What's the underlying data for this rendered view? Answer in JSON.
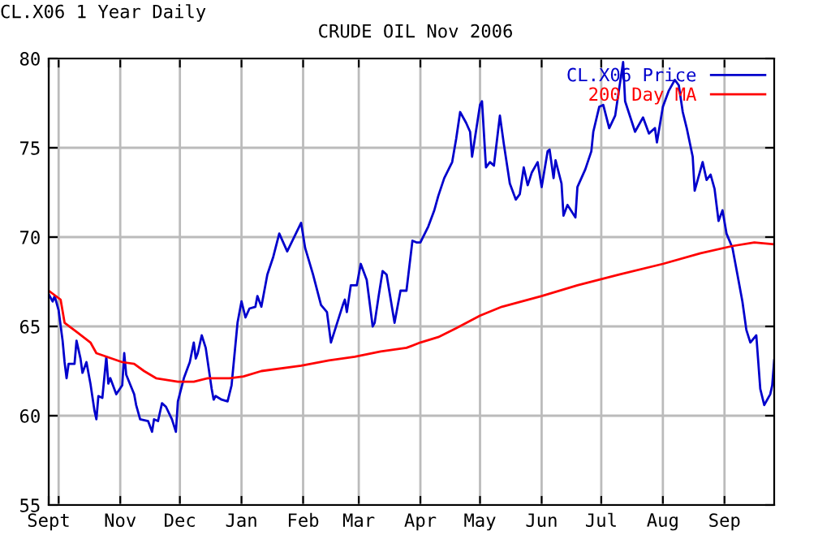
{
  "chart_data": {
    "type": "line",
    "title": "CRUDE OIL Nov 2006",
    "subtitle": "CL.X06 1 Year Daily",
    "xlim": [
      "2005-09-26",
      "2006-09-26"
    ],
    "ylim": [
      55,
      80
    ],
    "yticks": [
      55,
      60,
      65,
      70,
      75,
      80
    ],
    "xticks": [
      {
        "value": "2005-09-26",
        "label": "Sept"
      },
      {
        "value": "2005-10-01",
        "label": null
      },
      {
        "value": "2005-11-01",
        "label": "Nov"
      },
      {
        "value": "2005-12-01",
        "label": "Dec"
      },
      {
        "value": "2006-01-01",
        "label": "Jan"
      },
      {
        "value": "2006-02-01",
        "label": "Feb"
      },
      {
        "value": "2006-03-01",
        "label": "Mar"
      },
      {
        "value": "2006-04-01",
        "label": "Apr"
      },
      {
        "value": "2006-05-01",
        "label": "May"
      },
      {
        "value": "2006-06-01",
        "label": "Jun"
      },
      {
        "value": "2006-07-01",
        "label": "Jul"
      },
      {
        "value": "2006-08-01",
        "label": "Aug"
      },
      {
        "value": "2006-09-01",
        "label": "Sep"
      }
    ],
    "grid": true,
    "legend": "top right",
    "series": [
      {
        "name": "CL.X06 Price",
        "color": "#0000cc",
        "x": [
          "2005-09-26",
          "2005-09-28",
          "2005-09-29",
          "2005-10-01",
          "2005-10-03",
          "2005-10-04",
          "2005-10-05",
          "2005-10-06",
          "2005-10-09",
          "2005-10-10",
          "2005-10-12",
          "2005-10-13",
          "2005-10-15",
          "2005-10-17",
          "2005-10-19",
          "2005-10-20",
          "2005-10-21",
          "2005-10-23",
          "2005-10-25",
          "2005-10-26",
          "2005-10-27",
          "2005-10-30",
          "2005-11-02",
          "2005-11-03",
          "2005-11-04",
          "2005-11-08",
          "2005-11-09",
          "2005-11-11",
          "2005-11-15",
          "2005-11-17",
          "2005-11-18",
          "2005-11-20",
          "2005-11-22",
          "2005-11-24",
          "2005-11-27",
          "2005-11-29",
          "2005-11-30",
          "2005-12-03",
          "2005-12-05",
          "2005-12-06",
          "2005-12-08",
          "2005-12-09",
          "2005-12-10",
          "2005-12-12",
          "2005-12-14",
          "2005-12-17",
          "2005-12-18",
          "2005-12-19",
          "2005-12-22",
          "2005-12-25",
          "2005-12-27",
          "2005-12-30",
          "2006-01-01",
          "2006-01-03",
          "2006-01-05",
          "2006-01-08",
          "2006-01-09",
          "2006-01-11",
          "2006-01-14",
          "2006-01-17",
          "2006-01-20",
          "2006-01-24",
          "2006-01-31",
          "2006-02-02",
          "2006-02-06",
          "2006-02-10",
          "2006-02-13",
          "2006-02-15",
          "2006-02-21",
          "2006-02-22",
          "2006-02-23",
          "2006-02-25",
          "2006-02-28",
          "2006-03-02",
          "2006-03-05",
          "2006-03-08",
          "2006-03-09",
          "2006-03-11",
          "2006-03-13",
          "2006-03-15",
          "2006-03-19",
          "2006-03-22",
          "2006-03-25",
          "2006-03-28",
          "2006-03-30",
          "2006-04-01",
          "2006-04-05",
          "2006-04-08",
          "2006-04-10",
          "2006-04-13",
          "2006-04-17",
          "2006-04-19",
          "2006-04-21",
          "2006-04-24",
          "2006-04-26",
          "2006-04-27",
          "2006-05-01",
          "2006-05-02",
          "2006-05-04",
          "2006-05-06",
          "2006-05-08",
          "2006-05-11",
          "2006-05-13",
          "2006-05-16",
          "2006-05-19",
          "2006-05-21",
          "2006-05-23",
          "2006-05-25",
          "2006-05-27",
          "2006-05-30",
          "2006-06-01",
          "2006-06-04",
          "2006-06-05",
          "2006-06-07",
          "2006-06-08",
          "2006-06-11",
          "2006-06-12",
          "2006-06-14",
          "2006-06-18",
          "2006-06-19",
          "2006-06-23",
          "2006-06-26",
          "2006-06-27",
          "2006-06-30",
          "2006-07-02",
          "2006-07-05",
          "2006-07-08",
          "2006-07-12",
          "2006-07-13",
          "2006-07-18",
          "2006-07-22",
          "2006-07-25",
          "2006-07-28",
          "2006-07-29",
          "2006-08-01",
          "2006-08-04",
          "2006-08-07",
          "2006-08-09",
          "2006-08-11",
          "2006-08-13",
          "2006-08-16",
          "2006-08-17",
          "2006-08-21",
          "2006-08-23",
          "2006-08-25",
          "2006-08-27",
          "2006-08-29",
          "2006-08-31",
          "2006-09-02",
          "2006-09-05",
          "2006-09-08",
          "2006-09-10",
          "2006-09-12",
          "2006-09-14",
          "2006-09-17",
          "2006-09-19",
          "2006-09-21",
          "2006-09-24",
          "2006-09-25",
          "2006-09-26"
        ],
        "values": [
          66.8,
          66.4,
          66.7,
          65.9,
          64.2,
          63.0,
          62.1,
          62.9,
          62.9,
          64.2,
          63.2,
          62.4,
          63.0,
          61.8,
          60.3,
          59.8,
          61.1,
          61.0,
          63.3,
          61.8,
          62.1,
          61.2,
          61.7,
          63.5,
          62.3,
          61.2,
          60.6,
          59.8,
          59.7,
          59.1,
          59.8,
          59.7,
          60.7,
          60.5,
          59.8,
          59.1,
          60.8,
          62.1,
          62.7,
          63.0,
          64.1,
          63.2,
          63.5,
          64.5,
          63.8,
          61.5,
          60.9,
          61.1,
          60.9,
          60.8,
          61.7,
          65.2,
          66.4,
          65.5,
          66.0,
          66.1,
          66.7,
          66.1,
          67.9,
          68.9,
          70.2,
          69.2,
          70.8,
          69.4,
          67.9,
          66.2,
          65.8,
          64.1,
          66.2,
          66.5,
          65.8,
          67.3,
          67.3,
          68.5,
          67.6,
          65.0,
          65.2,
          66.7,
          68.1,
          67.9,
          65.2,
          67.0,
          67.0,
          69.8,
          69.7,
          69.7,
          70.6,
          71.5,
          72.3,
          73.3,
          74.2,
          75.5,
          77.0,
          76.4,
          75.9,
          74.5,
          77.4,
          77.6,
          73.9,
          74.2,
          74.0,
          76.8,
          75.2,
          73.0,
          72.1,
          72.4,
          73.9,
          72.9,
          73.6,
          74.2,
          72.8,
          74.8,
          74.9,
          73.3,
          74.3,
          73.0,
          71.2,
          71.8,
          71.1,
          72.8,
          73.8,
          74.8,
          75.9,
          77.3,
          77.4,
          76.1,
          76.8,
          79.8,
          77.6,
          75.9,
          76.7,
          75.8,
          76.1,
          75.3,
          77.3,
          78.2,
          78.8,
          78.5,
          77.0,
          76.1,
          74.5,
          72.6,
          74.2,
          73.2,
          73.5,
          72.7,
          70.9,
          71.5,
          70.2,
          69.4,
          67.6,
          66.4,
          64.8,
          64.1,
          64.5,
          61.5,
          60.6,
          61.2,
          61.7,
          63.1
        ]
      },
      {
        "name": "200 Day MA",
        "color": "#ff0000",
        "x": [
          "2005-09-26",
          "2005-10-02",
          "2005-10-04",
          "2005-10-10",
          "2005-10-17",
          "2005-10-20",
          "2005-11-02",
          "2005-11-08",
          "2005-11-13",
          "2005-11-19",
          "2005-11-30",
          "2005-12-08",
          "2005-12-15",
          "2005-12-26",
          "2006-01-02",
          "2006-01-11",
          "2006-01-31",
          "2006-02-14",
          "2006-02-27",
          "2006-03-12",
          "2006-03-25",
          "2006-04-01",
          "2006-04-10",
          "2006-04-19",
          "2006-05-01",
          "2006-05-12",
          "2006-06-01",
          "2006-06-19",
          "2006-07-10",
          "2006-08-01",
          "2006-08-20",
          "2006-09-05",
          "2006-09-16",
          "2006-09-26"
        ],
        "values": [
          67.0,
          66.5,
          65.2,
          64.7,
          64.1,
          63.5,
          63.0,
          62.9,
          62.5,
          62.1,
          61.9,
          61.9,
          62.1,
          62.1,
          62.2,
          62.5,
          62.8,
          63.1,
          63.3,
          63.6,
          63.8,
          64.1,
          64.4,
          64.9,
          65.6,
          66.1,
          66.7,
          67.3,
          67.9,
          68.5,
          69.1,
          69.5,
          69.7,
          69.6
        ]
      }
    ]
  }
}
